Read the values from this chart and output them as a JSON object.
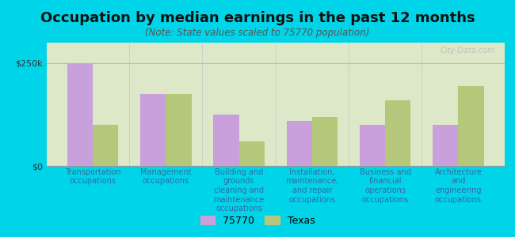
{
  "title": "Occupation by median earnings in the past 12 months",
  "subtitle": "(Note: State values scaled to 75770 population)",
  "categories": [
    "Transportation\noccupations",
    "Management\noccupations",
    "Building and\ngrounds\ncleaning and\nmaintenance\noccupations",
    "Installation,\nmaintenance,\nand repair\noccupations",
    "Business and\nfinancial\noperations\noccupations",
    "Architecture\nand\nengineering\noccupations"
  ],
  "values_75770": [
    250000,
    175000,
    125000,
    110000,
    100000,
    100000
  ],
  "values_texas": [
    100000,
    175000,
    60000,
    120000,
    160000,
    195000
  ],
  "color_75770": "#c9a0dc",
  "color_texas": "#b5c77a",
  "ylim": [
    0,
    300000
  ],
  "yticks": [
    0,
    250000
  ],
  "ytick_labels": [
    "$0",
    "$250k"
  ],
  "legend_label_75770": "75770",
  "legend_label_texas": "Texas",
  "bg_outer": "#00d4e8",
  "bg_chart": "#dde8c8",
  "watermark": "City-Data.com",
  "bar_width": 0.35,
  "title_fontsize": 13,
  "subtitle_fontsize": 8.5,
  "tick_label_fontsize": 7,
  "axis_label_color": "#2e6da4"
}
